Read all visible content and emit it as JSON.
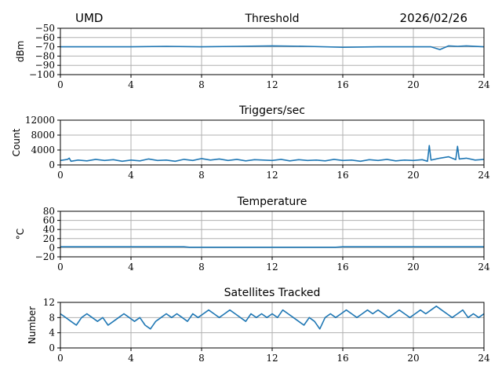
{
  "header": {
    "left": "UMD",
    "right": "2026/02/26"
  },
  "colors": {
    "series": "#1f77b4",
    "grid": "#b0b0b0"
  },
  "chart_data": [
    {
      "type": "line",
      "title": "Threshold",
      "ylabel": "dBm",
      "xlim": [
        0,
        24
      ],
      "ylim": [
        -100,
        -50
      ],
      "xticks": [
        "0",
        "4",
        "8",
        "12",
        "16",
        "20",
        "24"
      ],
      "yticks": [
        "−100",
        "−90",
        "−80",
        "−70",
        "−60",
        "−50"
      ],
      "grid": true,
      "series": [
        {
          "x": [
            0,
            2,
            4,
            6,
            8,
            10,
            12,
            14,
            16,
            18,
            20,
            21,
            21.5,
            22,
            22.5,
            23,
            24
          ],
          "y": [
            -70,
            -70,
            -70,
            -69.5,
            -70,
            -69.5,
            -69,
            -69.5,
            -70.5,
            -70,
            -70,
            -70,
            -73,
            -69,
            -69.5,
            -69,
            -70
          ]
        }
      ]
    },
    {
      "type": "line",
      "title": "Triggers/sec",
      "ylabel": "Count",
      "xlim": [
        0,
        24
      ],
      "ylim": [
        0,
        12000
      ],
      "xticks": [
        "0",
        "4",
        "8",
        "12",
        "16",
        "20",
        "24"
      ],
      "yticks": [
        "0",
        "4000",
        "8000",
        "12000"
      ],
      "grid": true,
      "series": [
        {
          "x": [
            0,
            0.4,
            0.5,
            0.6,
            1,
            1.5,
            2,
            2.5,
            3,
            3.5,
            4,
            4.5,
            5,
            5.5,
            6,
            6.5,
            7,
            7.5,
            8,
            8.5,
            9,
            9.5,
            10,
            10.5,
            11,
            11.5,
            12,
            12.5,
            13,
            13.5,
            14,
            14.5,
            15,
            15.5,
            16,
            16.5,
            17,
            17.5,
            18,
            18.5,
            19,
            19.5,
            20,
            20.5,
            20.8,
            20.9,
            21,
            21.5,
            22,
            22.4,
            22.5,
            22.6,
            23,
            23.5,
            24
          ],
          "y": [
            1200,
            1500,
            1800,
            1000,
            1300,
            1100,
            1500,
            1200,
            1400,
            1000,
            1300,
            1100,
            1600,
            1200,
            1300,
            1000,
            1500,
            1200,
            1700,
            1300,
            1600,
            1200,
            1500,
            1100,
            1400,
            1300,
            1200,
            1500,
            1100,
            1400,
            1200,
            1300,
            1100,
            1500,
            1200,
            1300,
            1000,
            1400,
            1200,
            1500,
            1100,
            1300,
            1200,
            1400,
            1000,
            5200,
            1300,
            1800,
            2200,
            1400,
            5000,
            1600,
            1800,
            1300,
            1500
          ]
        }
      ]
    },
    {
      "type": "line",
      "title": "Temperature",
      "ylabel": "°C",
      "xlim": [
        0,
        24
      ],
      "ylim": [
        -20,
        80
      ],
      "xticks": [
        "0",
        "4",
        "8",
        "12",
        "16",
        "20",
        "24"
      ],
      "yticks": [
        "−20",
        "0",
        "20",
        "40",
        "60",
        "80"
      ],
      "grid": true,
      "series": [
        {
          "x": [
            0,
            4,
            7,
            7.3,
            12,
            15.6,
            16,
            20,
            24
          ],
          "y": [
            2,
            2,
            2,
            1,
            1,
            1,
            2,
            2,
            2
          ]
        }
      ]
    },
    {
      "type": "line",
      "title": "Satellites Tracked",
      "ylabel": "Number",
      "xlim": [
        0,
        24
      ],
      "ylim": [
        0,
        12
      ],
      "xticks": [
        "0",
        "4",
        "8",
        "12",
        "16",
        "20",
        "24"
      ],
      "yticks": [
        "0",
        "4",
        "8",
        "12"
      ],
      "grid": true,
      "series": [
        {
          "x": [
            0,
            0.3,
            0.6,
            0.9,
            1.2,
            1.5,
            1.8,
            2.1,
            2.4,
            2.7,
            3.0,
            3.3,
            3.6,
            3.9,
            4.2,
            4.5,
            4.8,
            5.1,
            5.4,
            5.7,
            6.0,
            6.3,
            6.6,
            6.9,
            7.2,
            7.5,
            7.8,
            8.1,
            8.4,
            8.7,
            9.0,
            9.3,
            9.6,
            9.9,
            10.2,
            10.5,
            10.8,
            11.1,
            11.4,
            11.7,
            12.0,
            12.3,
            12.6,
            12.9,
            13.2,
            13.5,
            13.8,
            14.1,
            14.4,
            14.7,
            15.0,
            15.3,
            15.6,
            15.9,
            16.2,
            16.5,
            16.8,
            17.1,
            17.4,
            17.7,
            18.0,
            18.3,
            18.6,
            18.9,
            19.2,
            19.5,
            19.8,
            20.1,
            20.4,
            20.7,
            21.0,
            21.3,
            21.6,
            21.9,
            22.2,
            22.5,
            22.8,
            23.1,
            23.4,
            23.7,
            24.0
          ],
          "y": [
            9,
            8,
            7,
            6,
            8,
            9,
            8,
            7,
            8,
            6,
            7,
            8,
            9,
            8,
            7,
            8,
            6,
            5,
            7,
            8,
            9,
            8,
            9,
            8,
            7,
            9,
            8,
            9,
            10,
            9,
            8,
            9,
            10,
            9,
            8,
            7,
            9,
            8,
            9,
            8,
            9,
            8,
            10,
            9,
            8,
            7,
            6,
            8,
            7,
            5,
            8,
            9,
            8,
            9,
            10,
            9,
            8,
            9,
            10,
            9,
            10,
            9,
            8,
            9,
            10,
            9,
            8,
            9,
            10,
            9,
            10,
            11,
            10,
            9,
            8,
            9,
            10,
            8,
            9,
            8,
            9
          ]
        }
      ]
    }
  ]
}
